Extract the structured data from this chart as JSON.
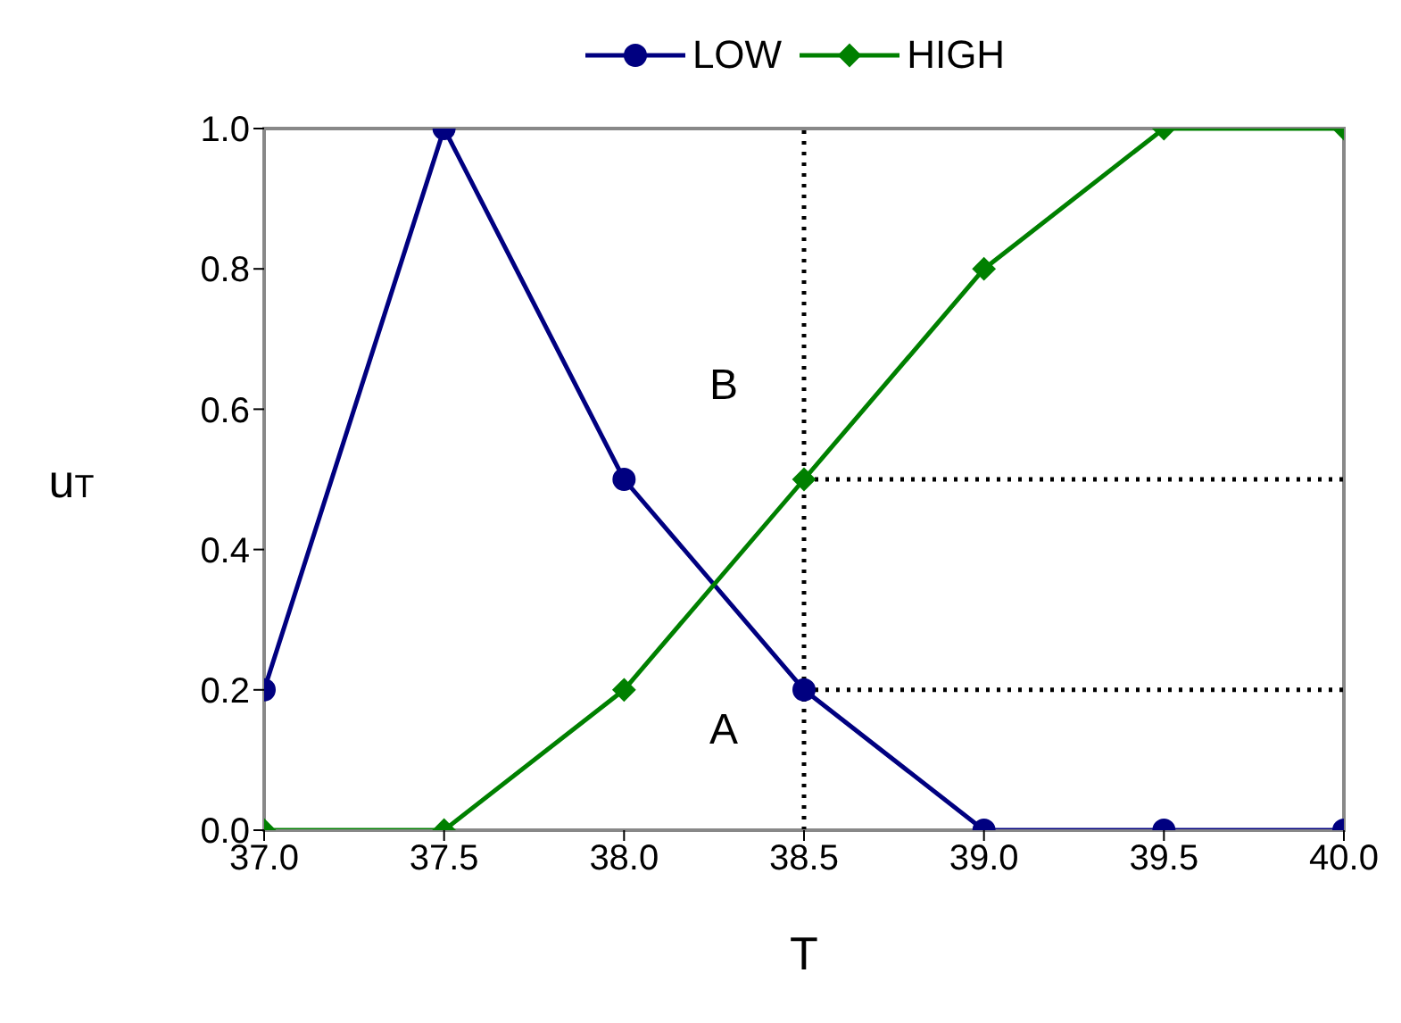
{
  "chart_data": {
    "type": "line",
    "xlabel": "T",
    "ylabel": "u$_{T}$",
    "x": [
      37,
      37.5,
      38,
      38.5,
      39,
      39.5,
      40
    ],
    "series": [
      {
        "name": "LOW",
        "color": "#000080",
        "marker": "circle",
        "values": [
          0.2,
          1,
          0.5,
          0.2,
          0,
          0,
          0
        ]
      },
      {
        "name": "HIGH",
        "color": "#008000",
        "marker": "diamond",
        "values": [
          0,
          0,
          0.2,
          0.5,
          0.8,
          1,
          1
        ]
      }
    ],
    "xlim": [
      37,
      40
    ],
    "xticks": [
      {
        "value": 37,
        "label": "37.0"
      },
      {
        "value": 37.5,
        "label": "37.5"
      },
      {
        "value": 38,
        "label": "38.0"
      },
      {
        "value": 38.5,
        "label": "38.5"
      },
      {
        "value": 39,
        "label": "39.0"
      },
      {
        "value": 39.5,
        "label": "39.5"
      },
      {
        "value": 40,
        "label": "40.0"
      }
    ],
    "ylim": [
      0,
      1
    ],
    "yticks": [
      {
        "value": 0,
        "label": "0.0"
      },
      {
        "value": 0.2,
        "label": "0.2"
      },
      {
        "value": 0.4,
        "label": "0.4"
      },
      {
        "value": 0.6,
        "label": "0.6"
      },
      {
        "value": 0.8,
        "label": "0.8"
      },
      {
        "value": 1,
        "label": "1.0"
      }
    ],
    "ref_lines": [
      {
        "axis": "x",
        "value": 38.5,
        "line_style": "dotted",
        "color": "#000000"
      },
      {
        "axis": "y",
        "value": 0.5,
        "line_style": "dotted",
        "color": "#000000"
      },
      {
        "axis": "y",
        "value": 0.2,
        "line_style": "dotted",
        "color": "#000000"
      }
    ],
    "annotations": [
      {
        "text": "A",
        "x": 38.5,
        "y": 0.2
      },
      {
        "text": "B",
        "x": 38.5,
        "y": 0.5
      }
    ],
    "grid": false,
    "legend": "top",
    "line_style": "solid"
  }
}
